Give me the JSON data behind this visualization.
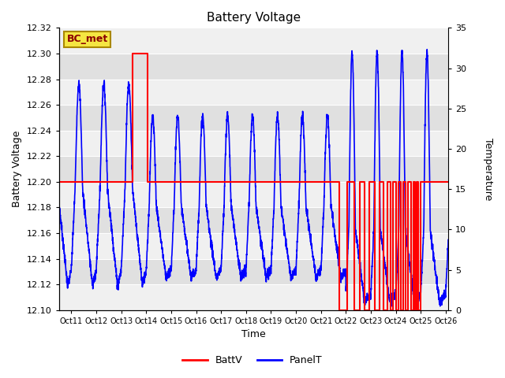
{
  "title": "Battery Voltage",
  "xlabel": "Time",
  "ylabel_left": "Battery Voltage",
  "ylabel_right": "Temperature",
  "ylim_left": [
    12.1,
    12.32
  ],
  "ylim_right": [
    0,
    35
  ],
  "yticks_left": [
    12.1,
    12.12,
    12.14,
    12.16,
    12.18,
    12.2,
    12.22,
    12.24,
    12.26,
    12.28,
    12.3,
    12.32
  ],
  "yticks_right": [
    0,
    5,
    10,
    15,
    20,
    25,
    30,
    35
  ],
  "bg_color": "#ffffff",
  "plot_bg_light": "#f0f0f0",
  "plot_bg_dark": "#e0e0e0",
  "grid_color": "#cccccc",
  "legend_label_batt": "BattV",
  "legend_label_panel": "PanelT",
  "batt_color": "red",
  "panel_color": "blue",
  "annotation_text": "BC_met",
  "annotation_bg": "#f5e642",
  "annotation_border": "#aa8800",
  "xtick_labels": [
    "Oct 11",
    "Oct 12",
    "Oct 13",
    "Oct 14",
    "Oct 15",
    "Oct 16",
    "Oct 17",
    "Oct 18",
    "Oct 19",
    "Oct 20",
    "Oct 21",
    "Oct 22",
    "Oct 23",
    "Oct 24",
    "Oct 25",
    "Oct 26"
  ],
  "x_positions": [
    11,
    12,
    13,
    14,
    15,
    16,
    17,
    18,
    19,
    20,
    21,
    22,
    23,
    24,
    25,
    26
  ],
  "xlim": [
    10.5,
    26.1
  ],
  "batt_steps": [
    [
      10.5,
      12.2
    ],
    [
      13.45,
      12.2
    ],
    [
      13.45,
      12.3
    ],
    [
      14.05,
      12.3
    ],
    [
      14.05,
      12.2
    ],
    [
      21.75,
      12.2
    ],
    [
      21.75,
      12.1
    ],
    [
      22.05,
      12.1
    ],
    [
      22.05,
      12.2
    ],
    [
      22.35,
      12.2
    ],
    [
      22.35,
      12.1
    ],
    [
      22.55,
      12.1
    ],
    [
      22.55,
      12.2
    ],
    [
      22.75,
      12.2
    ],
    [
      22.75,
      12.1
    ],
    [
      22.95,
      12.1
    ],
    [
      22.95,
      12.2
    ],
    [
      23.15,
      12.2
    ],
    [
      23.15,
      12.1
    ],
    [
      23.35,
      12.1
    ],
    [
      23.35,
      12.2
    ],
    [
      23.5,
      12.2
    ],
    [
      23.5,
      12.1
    ],
    [
      23.65,
      12.1
    ],
    [
      23.65,
      12.2
    ],
    [
      23.8,
      12.2
    ],
    [
      23.8,
      12.1
    ],
    [
      23.9,
      12.1
    ],
    [
      23.9,
      12.2
    ],
    [
      24.0,
      12.2
    ],
    [
      24.0,
      12.1
    ],
    [
      24.1,
      12.1
    ],
    [
      24.1,
      12.2
    ],
    [
      24.2,
      12.2
    ],
    [
      24.2,
      12.1
    ],
    [
      24.3,
      12.1
    ],
    [
      24.3,
      12.2
    ],
    [
      24.4,
      12.2
    ],
    [
      24.4,
      12.1
    ],
    [
      24.5,
      12.1
    ],
    [
      24.5,
      12.2
    ],
    [
      24.6,
      12.2
    ],
    [
      24.6,
      12.1
    ],
    [
      24.7,
      12.1
    ],
    [
      24.7,
      12.2
    ],
    [
      24.77,
      12.2
    ],
    [
      24.77,
      12.1
    ],
    [
      24.84,
      12.1
    ],
    [
      24.84,
      12.2
    ],
    [
      24.91,
      12.2
    ],
    [
      24.91,
      12.1
    ],
    [
      24.98,
      12.1
    ],
    [
      24.98,
      12.2
    ],
    [
      26.1,
      12.2
    ]
  ]
}
